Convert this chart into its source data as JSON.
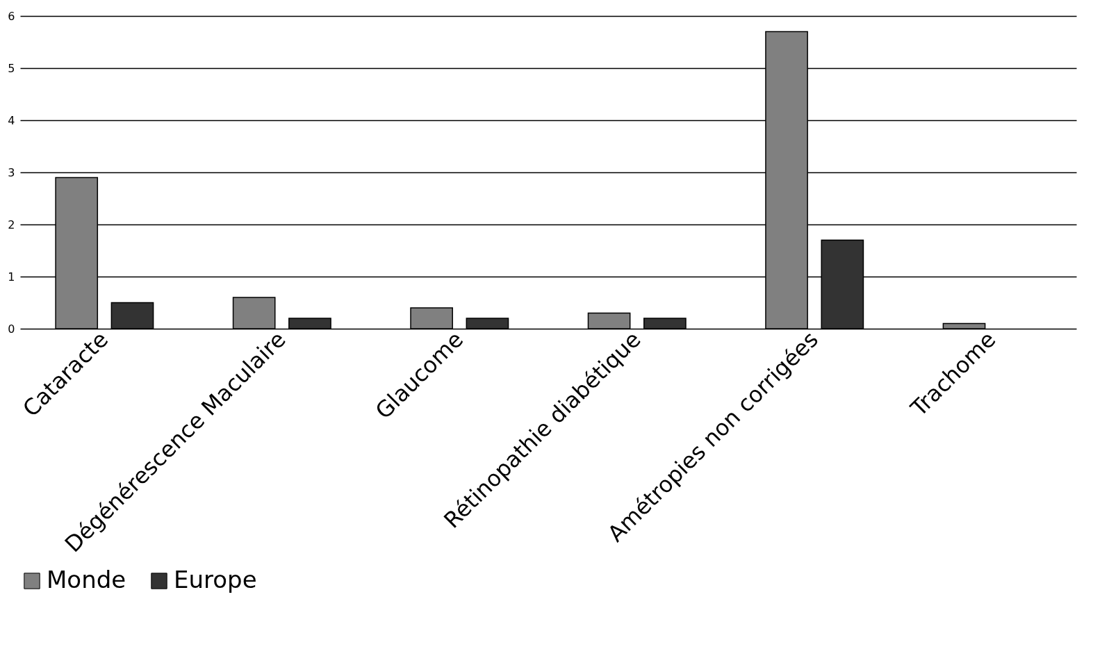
{
  "chart_data": {
    "type": "bar",
    "categories": [
      "Cataracte",
      "Dégénérescence Maculaire",
      "Glaucome",
      "Rétinopathie diabétique",
      "Amétropies non corrigées",
      "Trachome"
    ],
    "series": [
      {
        "name": "Monde",
        "color": "#808080",
        "values": [
          2.9,
          0.6,
          0.4,
          0.3,
          5.7,
          0.1
        ]
      },
      {
        "name": "Europe",
        "color": "#333333",
        "values": [
          0.5,
          0.2,
          0.2,
          0.2,
          1.7,
          null
        ]
      }
    ],
    "ylim": [
      0,
      6
    ],
    "yticks": [
      0,
      1,
      2,
      3,
      4,
      5,
      6
    ],
    "grid": "y",
    "legend": "bottom"
  }
}
